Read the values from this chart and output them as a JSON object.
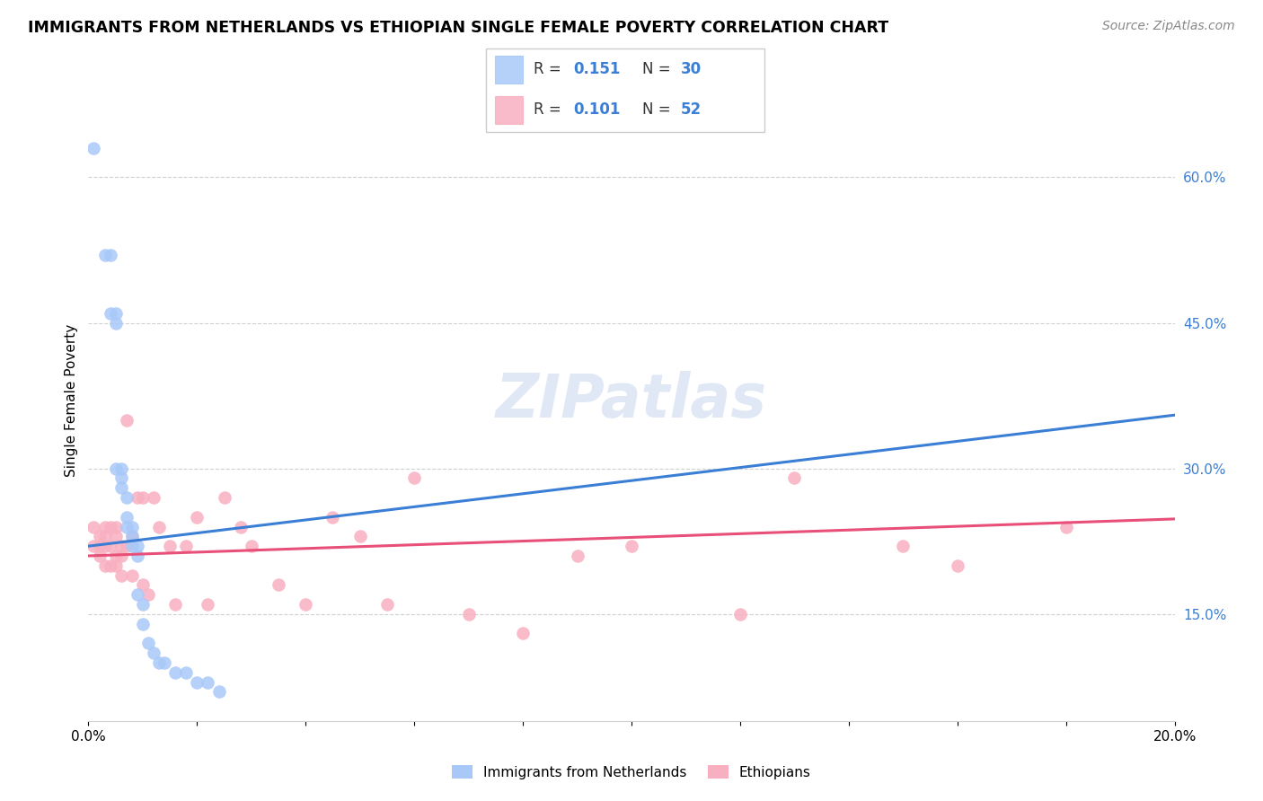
{
  "title": "IMMIGRANTS FROM NETHERLANDS VS ETHIOPIAN SINGLE FEMALE POVERTY CORRELATION CHART",
  "source": "Source: ZipAtlas.com",
  "ylabel": "Single Female Poverty",
  "right_yticks": [
    "60.0%",
    "45.0%",
    "30.0%",
    "15.0%"
  ],
  "right_ytick_vals": [
    0.6,
    0.45,
    0.3,
    0.15
  ],
  "netherlands_color": "#a8c8f8",
  "ethiopians_color": "#f8b0c0",
  "netherlands_line_color": "#3a7fd5",
  "ethiopians_line_color": "#e8507a",
  "watermark": "ZIPatlas",
  "nl_r": "0.151",
  "nl_n": "30",
  "eth_r": "0.101",
  "eth_n": "52",
  "netherlands_x": [
    0.001,
    0.003,
    0.004,
    0.004,
    0.005,
    0.005,
    0.005,
    0.006,
    0.006,
    0.006,
    0.007,
    0.007,
    0.007,
    0.008,
    0.008,
    0.008,
    0.009,
    0.009,
    0.009,
    0.01,
    0.01,
    0.011,
    0.012,
    0.013,
    0.014,
    0.016,
    0.018,
    0.02,
    0.022,
    0.024
  ],
  "netherlands_y": [
    0.63,
    0.52,
    0.52,
    0.46,
    0.46,
    0.45,
    0.3,
    0.3,
    0.29,
    0.28,
    0.27,
    0.25,
    0.24,
    0.24,
    0.23,
    0.22,
    0.22,
    0.21,
    0.17,
    0.16,
    0.14,
    0.12,
    0.11,
    0.1,
    0.1,
    0.09,
    0.09,
    0.08,
    0.08,
    0.07
  ],
  "ethiopians_x": [
    0.001,
    0.001,
    0.002,
    0.002,
    0.002,
    0.003,
    0.003,
    0.003,
    0.003,
    0.004,
    0.004,
    0.004,
    0.005,
    0.005,
    0.005,
    0.005,
    0.006,
    0.006,
    0.006,
    0.007,
    0.007,
    0.008,
    0.008,
    0.009,
    0.01,
    0.01,
    0.011,
    0.012,
    0.013,
    0.015,
    0.016,
    0.018,
    0.02,
    0.022,
    0.025,
    0.028,
    0.03,
    0.035,
    0.04,
    0.045,
    0.05,
    0.055,
    0.06,
    0.07,
    0.08,
    0.09,
    0.1,
    0.12,
    0.13,
    0.15,
    0.16,
    0.18
  ],
  "ethiopians_y": [
    0.24,
    0.22,
    0.23,
    0.22,
    0.21,
    0.24,
    0.23,
    0.22,
    0.2,
    0.24,
    0.22,
    0.2,
    0.24,
    0.23,
    0.21,
    0.2,
    0.22,
    0.21,
    0.19,
    0.35,
    0.22,
    0.23,
    0.19,
    0.27,
    0.27,
    0.18,
    0.17,
    0.27,
    0.24,
    0.22,
    0.16,
    0.22,
    0.25,
    0.16,
    0.27,
    0.24,
    0.22,
    0.18,
    0.16,
    0.25,
    0.23,
    0.16,
    0.29,
    0.15,
    0.13,
    0.21,
    0.22,
    0.15,
    0.29,
    0.22,
    0.2,
    0.24
  ],
  "xmin": 0.0,
  "xmax": 0.2,
  "ymin": 0.04,
  "ymax": 0.7,
  "nl_line_x0": 0.0,
  "nl_line_y0": 0.22,
  "nl_line_x1": 0.2,
  "nl_line_y1": 0.355,
  "eth_line_x0": 0.0,
  "eth_line_y0": 0.21,
  "eth_line_x1": 0.2,
  "eth_line_y1": 0.248
}
